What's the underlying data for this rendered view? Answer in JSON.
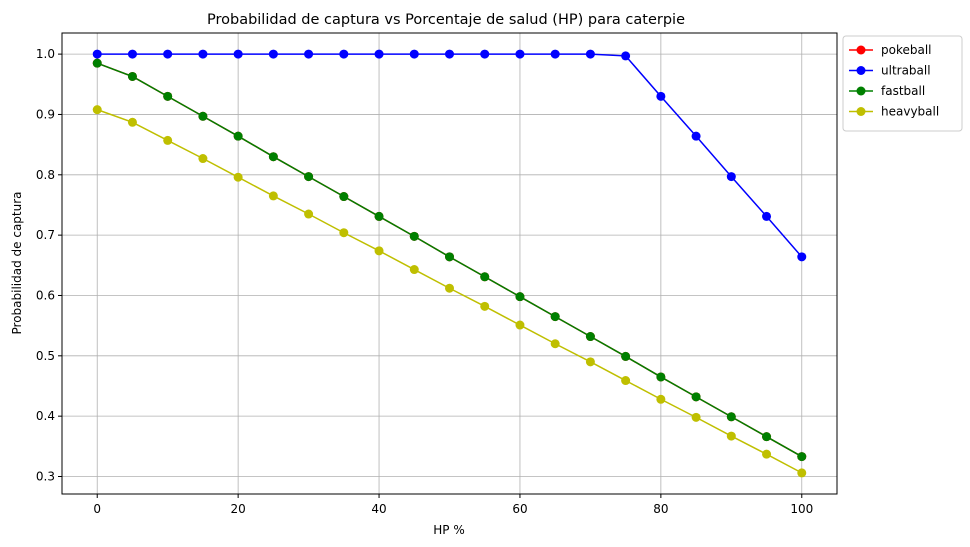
{
  "chart_data": {
    "type": "line",
    "title": "Probabilidad de captura vs Porcentaje de salud (HP) para caterpie",
    "xlabel": "HP %",
    "ylabel": "Probabilidad de captura",
    "xlim": [
      -5,
      105
    ],
    "ylim": [
      0.271,
      1.035
    ],
    "xticks": [
      0,
      20,
      40,
      60,
      80,
      100
    ],
    "yticks": [
      0.3,
      0.4,
      0.5,
      0.6,
      0.7,
      0.8,
      0.9,
      1.0
    ],
    "grid": true,
    "legend_position": "outside-upper-right",
    "x": [
      0,
      5,
      10,
      15,
      20,
      25,
      30,
      35,
      40,
      45,
      50,
      55,
      60,
      65,
      70,
      75,
      80,
      85,
      90,
      95,
      100
    ],
    "series": [
      {
        "name": "pokeball",
        "color": "#ff0000",
        "values": [
          0.985,
          0.963,
          0.93,
          0.897,
          0.864,
          0.83,
          0.797,
          0.764,
          0.731,
          0.698,
          0.664,
          0.631,
          0.598,
          0.565,
          0.532,
          0.499,
          0.465,
          0.432,
          0.399,
          0.366,
          0.333
        ]
      },
      {
        "name": "ultraball",
        "color": "#0000ff",
        "values": [
          1.0,
          1.0,
          1.0,
          1.0,
          1.0,
          1.0,
          1.0,
          1.0,
          1.0,
          1.0,
          1.0,
          1.0,
          1.0,
          1.0,
          1.0,
          0.997,
          0.93,
          0.864,
          0.797,
          0.731,
          0.664
        ]
      },
      {
        "name": "fastball",
        "color": "#008000",
        "values": [
          0.985,
          0.963,
          0.93,
          0.897,
          0.864,
          0.83,
          0.797,
          0.764,
          0.731,
          0.698,
          0.664,
          0.631,
          0.598,
          0.565,
          0.532,
          0.499,
          0.465,
          0.432,
          0.399,
          0.366,
          0.333
        ]
      },
      {
        "name": "heavyball",
        "color": "#bfbf00",
        "values": [
          0.908,
          0.887,
          0.857,
          0.827,
          0.796,
          0.765,
          0.735,
          0.704,
          0.674,
          0.643,
          0.612,
          0.582,
          0.551,
          0.52,
          0.49,
          0.459,
          0.428,
          0.398,
          0.367,
          0.337,
          0.306
        ]
      }
    ]
  }
}
